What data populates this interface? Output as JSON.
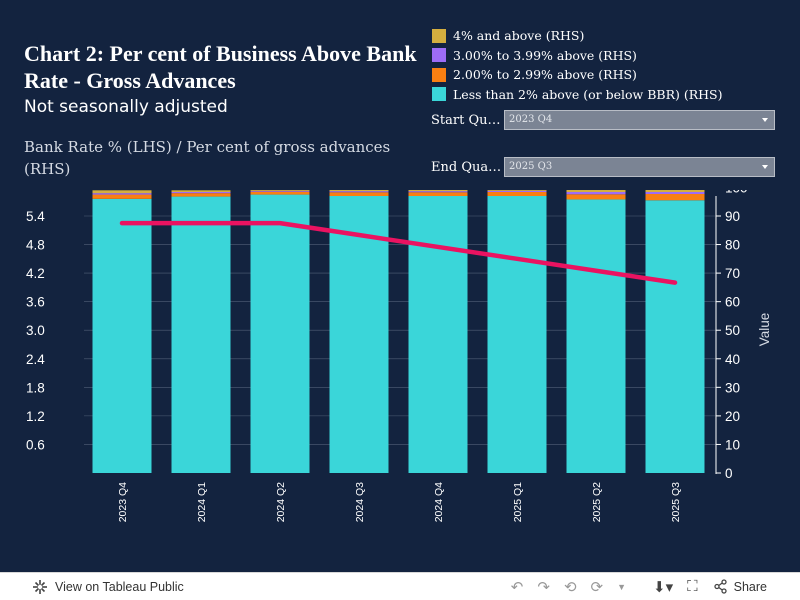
{
  "title": "Chart 2: Per cent of Business Above Bank Rate - Gross Advances",
  "subtitle": "Not seasonally adjusted",
  "axis_description": "Bank Rate % (LHS) / Per cent of gross advances (RHS)",
  "legend": [
    {
      "label": "4% and above (RHS)",
      "color": "#d4ae3f"
    },
    {
      "label": "3.00% to 3.99% above (RHS)",
      "color": "#9d6cf7"
    },
    {
      "label": "2.00% to 2.99% above (RHS)",
      "color": "#f97f12"
    },
    {
      "label": "Less than 2% above (or below BBR) (RHS)",
      "color": "#3ad6d9"
    }
  ],
  "filters": {
    "start_label": "Start Qu…",
    "start_value": "2023 Q4",
    "end_label": "End Qua…",
    "end_value": "2025 Q3"
  },
  "chart_data": {
    "type": "bar",
    "categories": [
      "2023 Q4",
      "2024 Q1",
      "2024 Q2",
      "2024 Q3",
      "2024 Q4",
      "2025 Q1",
      "2025 Q2",
      "2025 Q3"
    ],
    "bar_series": [
      {
        "name": "Less than 2% above (or below BBR) (RHS)",
        "color": "#3ad6d9",
        "values": [
          96.0,
          96.8,
          97.5,
          97.0,
          97.0,
          97.0,
          95.8,
          95.5
        ]
      },
      {
        "name": "2.00% to 2.99% above (RHS)",
        "color": "#f97f12",
        "values": [
          1.5,
          1.2,
          1.0,
          1.3,
          1.3,
          1.4,
          1.8,
          2.2
        ]
      },
      {
        "name": "3.00% to 3.99% above (RHS)",
        "color": "#9d6cf7",
        "values": [
          0.5,
          0.4,
          0.3,
          0.4,
          0.4,
          0.4,
          0.8,
          0.7
        ]
      },
      {
        "name": "4% and above (RHS)",
        "color": "#d4ae3f",
        "values": [
          1.0,
          0.6,
          0.4,
          0.5,
          0.5,
          0.5,
          0.8,
          0.8
        ]
      }
    ],
    "line_series": {
      "name": "Bank Rate",
      "color": "#ea1361",
      "values": [
        5.25,
        5.25,
        5.25,
        5.0,
        4.75,
        4.5,
        4.25,
        4.0
      ]
    },
    "left_axis": {
      "ticks": [
        "0.6",
        "1.2",
        "1.8",
        "2.4",
        "3.0",
        "3.6",
        "4.2",
        "4.8",
        "5.4"
      ],
      "range": [
        0,
        5.82
      ]
    },
    "right_axis": {
      "label": "Value",
      "ticks": [
        "0",
        "10",
        "20",
        "30",
        "40",
        "50",
        "60",
        "70",
        "80",
        "90",
        "100"
      ],
      "range": [
        0,
        97
      ]
    },
    "grid": true
  },
  "footer": {
    "view_label": "View on Tableau Public",
    "share_label": "Share"
  }
}
